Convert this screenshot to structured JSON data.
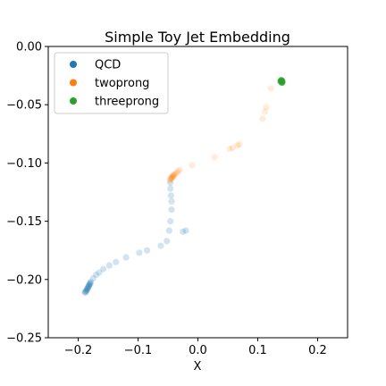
{
  "chart_data": {
    "type": "scatter",
    "title": "Simple Toy Jet Embedding",
    "xlabel": "X",
    "ylabel": "",
    "xlim": [
      -0.25,
      0.25
    ],
    "ylim": [
      -0.25,
      0.0
    ],
    "x_ticks": [
      {
        "value": -0.2,
        "label": "−0.2"
      },
      {
        "value": -0.1,
        "label": "−0.1"
      },
      {
        "value": 0.0,
        "label": "0.0"
      },
      {
        "value": 0.1,
        "label": "0.1"
      },
      {
        "value": 0.2,
        "label": "0.2"
      }
    ],
    "y_ticks": [
      {
        "value": 0.0,
        "label": "0.00"
      },
      {
        "value": -0.05,
        "label": "−0.05"
      },
      {
        "value": -0.1,
        "label": "−0.10"
      },
      {
        "value": -0.15,
        "label": "−0.15"
      },
      {
        "value": -0.2,
        "label": "−0.20"
      },
      {
        "value": -0.25,
        "label": "−0.25"
      }
    ],
    "grid": false,
    "legend_position": "top-left",
    "series": [
      {
        "name": "QCD",
        "color": "#1f77b4",
        "alpha": 0.2,
        "points": [
          [
            -0.189,
            -0.211
          ],
          [
            -0.188,
            -0.211
          ],
          [
            -0.187,
            -0.21
          ],
          [
            -0.186,
            -0.209
          ],
          [
            -0.185,
            -0.208
          ],
          [
            -0.184,
            -0.207
          ],
          [
            -0.183,
            -0.206
          ],
          [
            -0.182,
            -0.205
          ],
          [
            -0.181,
            -0.204
          ],
          [
            -0.18,
            -0.203
          ],
          [
            -0.179,
            -0.202
          ],
          [
            -0.186,
            -0.21
          ],
          [
            -0.184,
            -0.208
          ],
          [
            -0.182,
            -0.206
          ],
          [
            -0.18,
            -0.204
          ],
          [
            -0.175,
            -0.199
          ],
          [
            -0.17,
            -0.196
          ],
          [
            -0.165,
            -0.194
          ],
          [
            -0.158,
            -0.191
          ],
          [
            -0.148,
            -0.188
          ],
          [
            -0.137,
            -0.185
          ],
          [
            -0.12,
            -0.181
          ],
          [
            -0.098,
            -0.177
          ],
          [
            -0.085,
            -0.175
          ],
          [
            -0.062,
            -0.171
          ],
          [
            -0.052,
            -0.167
          ],
          [
            -0.048,
            -0.158
          ],
          [
            -0.046,
            -0.15
          ],
          [
            -0.044,
            -0.14
          ],
          [
            -0.044,
            -0.133
          ],
          [
            -0.045,
            -0.128
          ],
          [
            -0.046,
            -0.122
          ],
          [
            -0.046,
            -0.117
          ],
          [
            -0.025,
            -0.159
          ],
          [
            -0.02,
            -0.158
          ]
        ]
      },
      {
        "name": "twoprong",
        "color": "#ff7f0e",
        "alpha": 0.15,
        "points": [
          [
            -0.047,
            -0.115
          ],
          [
            -0.046,
            -0.114
          ],
          [
            -0.045,
            -0.113
          ],
          [
            -0.044,
            -0.112
          ],
          [
            -0.043,
            -0.112
          ],
          [
            -0.042,
            -0.111
          ],
          [
            -0.041,
            -0.111
          ],
          [
            -0.04,
            -0.11
          ],
          [
            -0.039,
            -0.11
          ],
          [
            -0.037,
            -0.109
          ],
          [
            -0.035,
            -0.108
          ],
          [
            -0.033,
            -0.107
          ],
          [
            -0.03,
            -0.106
          ],
          [
            -0.045,
            -0.114
          ],
          [
            -0.043,
            -0.113
          ],
          [
            -0.041,
            -0.112
          ],
          [
            -0.01,
            -0.102
          ],
          [
            0.028,
            -0.095
          ],
          [
            0.053,
            -0.088
          ],
          [
            0.058,
            -0.087
          ],
          [
            0.066,
            -0.085
          ],
          [
            0.069,
            -0.084
          ],
          [
            0.108,
            -0.062
          ],
          [
            0.112,
            -0.056
          ],
          [
            0.114,
            -0.052
          ],
          [
            0.122,
            -0.036
          ]
        ]
      },
      {
        "name": "threeprong",
        "color": "#2ca02c",
        "alpha": 0.6,
        "points": [
          [
            0.138,
            -0.03
          ],
          [
            0.139,
            -0.03
          ],
          [
            0.14,
            -0.03
          ],
          [
            0.141,
            -0.03
          ],
          [
            0.14,
            -0.031
          ],
          [
            0.139,
            -0.029
          ],
          [
            0.141,
            -0.031
          ],
          [
            0.14,
            -0.029
          ]
        ]
      }
    ]
  }
}
